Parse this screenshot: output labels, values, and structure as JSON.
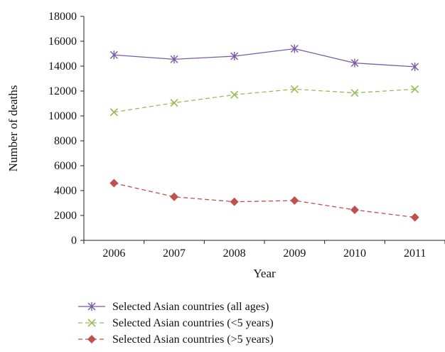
{
  "chart_data": {
    "type": "line",
    "title": "",
    "xlabel": "Year",
    "ylabel": "Number of deaths",
    "categories": [
      "2006",
      "2007",
      "2008",
      "2009",
      "2010",
      "2011"
    ],
    "ylim": [
      0,
      18000
    ],
    "yticks": [
      "0",
      "2000",
      "4000",
      "6000",
      "8000",
      "10000",
      "12000",
      "14000",
      "16000",
      "18000"
    ],
    "grid": false,
    "legend_position": "bottom",
    "series": [
      {
        "name": "Selected Asian countries (all ages)",
        "values": [
          14900,
          14550,
          14800,
          15400,
          14250,
          13950
        ],
        "color": "#7b5aa6",
        "marker": "asterisk",
        "line": "solid"
      },
      {
        "name": "Selected Asian countries (<5 years)",
        "values": [
          10300,
          11050,
          11700,
          12150,
          11850,
          12150
        ],
        "color": "#9bbb59",
        "marker": "x",
        "line": "dashed"
      },
      {
        "name": "Selected Asian countries (>5 years)",
        "values": [
          4600,
          3500,
          3100,
          3200,
          2450,
          1850
        ],
        "color": "#c0504d",
        "marker": "diamond",
        "line": "dashed"
      }
    ]
  }
}
